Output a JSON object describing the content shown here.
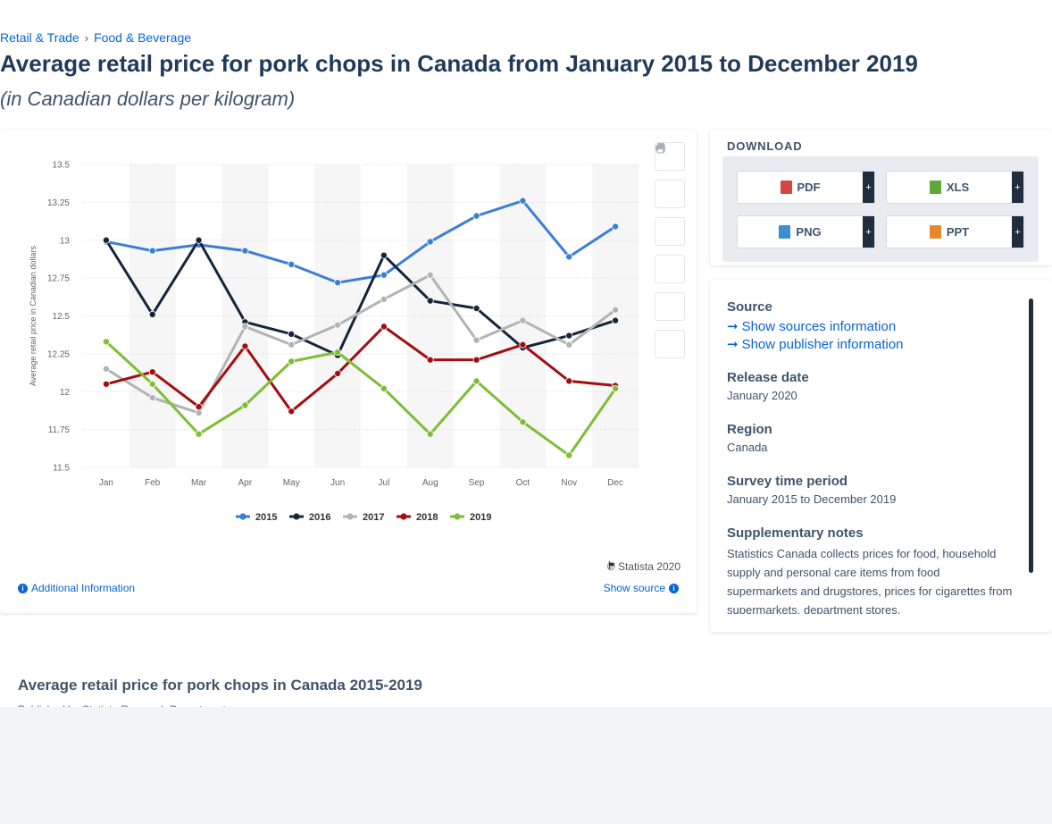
{
  "breadcrumb": {
    "items": [
      "Retail & Trade",
      "Food & Beverage"
    ],
    "separator": "›"
  },
  "page": {
    "title": "Average retail price for pork chops in Canada from January 2015 to December 2019",
    "subtitle": "(in Canadian dollars per kilogram)"
  },
  "chart_data": {
    "type": "line",
    "title": "",
    "xlabel": "",
    "ylabel": "Average retail price in Canadian dollars",
    "categories": [
      "Jan",
      "Feb",
      "Mar",
      "Apr",
      "May",
      "Jun",
      "Jul",
      "Aug",
      "Sep",
      "Oct",
      "Nov",
      "Dec"
    ],
    "ylim": [
      11.5,
      13.5
    ],
    "yticks": [
      "11.5",
      "11.75",
      "12",
      "12.25",
      "12.5",
      "12.75",
      "13",
      "13.25",
      "13.5"
    ],
    "grid": true,
    "legend_position": "bottom",
    "series": [
      {
        "name": "2015",
        "color": "#3a7fd5",
        "values": [
          12.99,
          12.93,
          12.97,
          12.93,
          12.84,
          12.72,
          12.77,
          12.99,
          13.16,
          13.26,
          12.89,
          13.09
        ]
      },
      {
        "name": "2016",
        "color": "#15253b",
        "values": [
          13.0,
          12.51,
          13.0,
          12.46,
          12.38,
          12.24,
          12.9,
          12.6,
          12.55,
          12.29,
          12.37,
          12.47
        ]
      },
      {
        "name": "2017",
        "color": "#b3b3b3",
        "values": [
          12.15,
          11.96,
          11.86,
          12.43,
          12.31,
          12.44,
          12.61,
          12.77,
          12.34,
          12.47,
          12.31,
          12.54
        ]
      },
      {
        "name": "2018",
        "color": "#a30d12",
        "values": [
          12.05,
          12.13,
          11.9,
          12.3,
          11.87,
          12.12,
          12.43,
          12.21,
          12.21,
          12.31,
          12.07,
          12.04
        ]
      },
      {
        "name": "2019",
        "color": "#7ebd34",
        "values": [
          12.33,
          12.05,
          11.72,
          11.91,
          12.2,
          12.26,
          12.02,
          11.72,
          12.07,
          11.8,
          11.58,
          12.02
        ]
      }
    ]
  },
  "chart_footer": {
    "copyright": "© Statista 2020",
    "additional_info": "Additional Information",
    "show_source": "Show source"
  },
  "tools": [
    "star-icon",
    "bell-icon",
    "gear-icon",
    "share-icon",
    "quote-icon",
    "print-icon"
  ],
  "download": {
    "title": "DOWNLOAD",
    "buttons": [
      {
        "label": "PDF",
        "color": "#d64541"
      },
      {
        "label": "XLS",
        "color": "#5fa83c"
      },
      {
        "label": "PNG",
        "color": "#3a8fd0"
      },
      {
        "label": "PPT",
        "color": "#e58a2c"
      }
    ],
    "plus": "+"
  },
  "meta": {
    "source_heading": "Source",
    "show_sources": "Show sources information",
    "show_publisher": "Show publisher information",
    "release_heading": "Release date",
    "release_value": "January 2020",
    "region_heading": "Region",
    "region_value": "Canada",
    "survey_heading": "Survey time period",
    "survey_value": "January 2015 to December 2019",
    "notes_heading": "Supplementary notes",
    "notes_value": "Statistics Canada collects prices for food, household supply and personal care items from food supermarkets and drugstores, prices for cigarettes from supermarkets, department stores,"
  },
  "bottom": {
    "title": "Average retail price for pork chops in Canada 2015-2019",
    "sub": "Published by Statista Research Department"
  }
}
